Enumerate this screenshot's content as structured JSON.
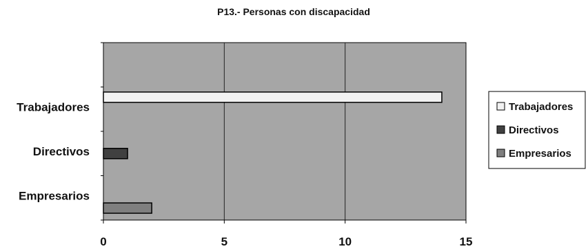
{
  "chart_data": {
    "type": "bar",
    "orientation": "horizontal",
    "title": "P13.- Personas con discapacidad",
    "categories": [
      "Trabajadores",
      "Directivos",
      "Empresarios"
    ],
    "values": [
      14,
      1,
      2
    ],
    "xlabel": "",
    "ylabel": "",
    "xlim": [
      0,
      15
    ],
    "xticks": [
      "0",
      "5",
      "10",
      "15"
    ],
    "grid": true,
    "legend": {
      "position": "right",
      "entries": [
        {
          "label": "Trabajadores",
          "color": "#f2f2f2"
        },
        {
          "label": "Directivos",
          "color": "#404040"
        },
        {
          "label": "Empresarios",
          "color": "#7f7f7f"
        }
      ]
    },
    "colors": {
      "plot_background": "#a6a6a6",
      "Trabajadores": "#f2f2f2",
      "Directivos": "#404040",
      "Empresarios": "#7f7f7f"
    }
  }
}
